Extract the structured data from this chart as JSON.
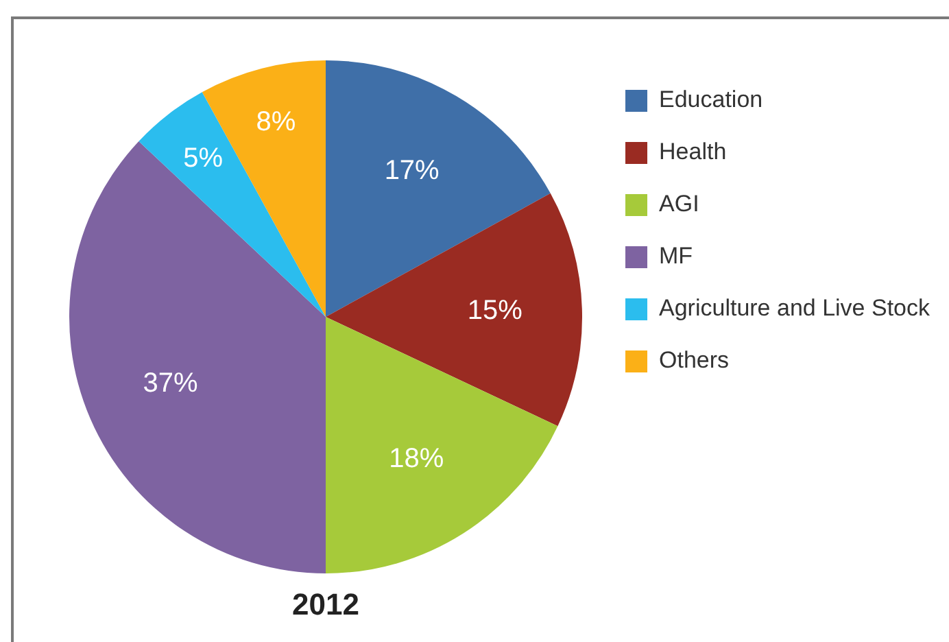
{
  "chart_data": {
    "type": "pie",
    "title": "2012",
    "categories": [
      "Education",
      "Health",
      "AGI",
      "MF",
      "Agriculture and Live Stock",
      "Others"
    ],
    "values": [
      17,
      15,
      18,
      37,
      5,
      8
    ],
    "value_labels": [
      "17%",
      "15%",
      "18%",
      "37%",
      "5%",
      "8%"
    ],
    "colors": [
      "#3f6fa8",
      "#9a2b22",
      "#a6ca3a",
      "#7e63a1",
      "#2bbdee",
      "#fbb017"
    ],
    "legend": "right"
  }
}
